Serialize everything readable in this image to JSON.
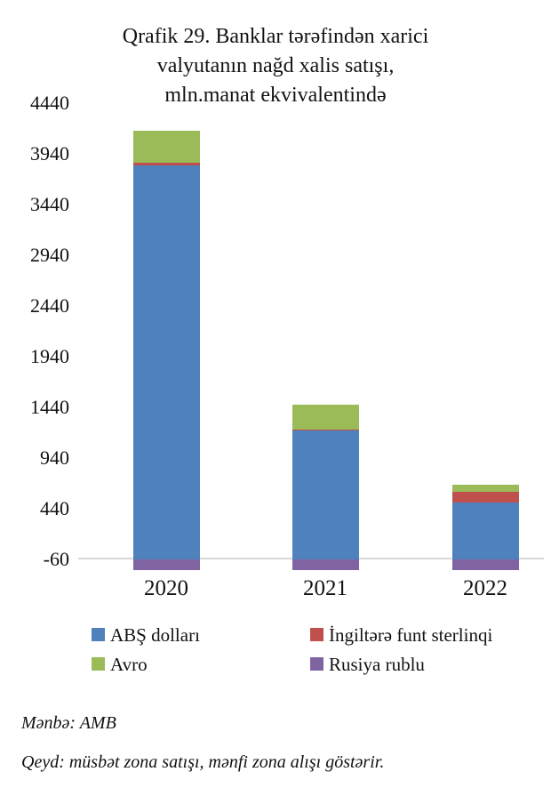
{
  "chart_data": {
    "type": "bar",
    "stacked": true,
    "title": "Qrafik 29. Banklar tərəfindən xarici valyutanın nağd xalis satışı, mln.manat ekvivalentində",
    "title_lines": [
      "Qrafik 29. Banklar tərəfindən xarici",
      "valyutanın nağd xalis satışı,",
      "mln.manat ekvivalentində"
    ],
    "categories": [
      "2020",
      "2021",
      "2022"
    ],
    "series": [
      {
        "name": "ABŞ dolları",
        "color": "#4f81bd",
        "values": [
          3825,
          1215,
          500
        ]
      },
      {
        "name": "İngiltərə funt sterlinqi",
        "color": "#c0504d",
        "values": [
          25,
          10,
          105
        ]
      },
      {
        "name": "Avro",
        "color": "#9bbb59",
        "values": [
          315,
          245,
          70
        ]
      },
      {
        "name": "Rusiya rublu",
        "color": "#8064a2",
        "values": [
          -105,
          -105,
          -105
        ]
      }
    ],
    "y_ticks": [
      "4440",
      "3940",
      "3440",
      "2940",
      "2440",
      "1940",
      "1440",
      "940",
      "440",
      "-60"
    ],
    "ylim": [
      -60,
      4440
    ],
    "xlabel": "",
    "ylabel": "",
    "grid": "baseline-only",
    "gridline_color": "#d9d9d9",
    "legend_position": "bottom-two-columns"
  },
  "footer": {
    "source": "Mənbə: AMB",
    "note": "Qeyd: müsbət zona satışı, mənfi zona alışı göstərir."
  }
}
